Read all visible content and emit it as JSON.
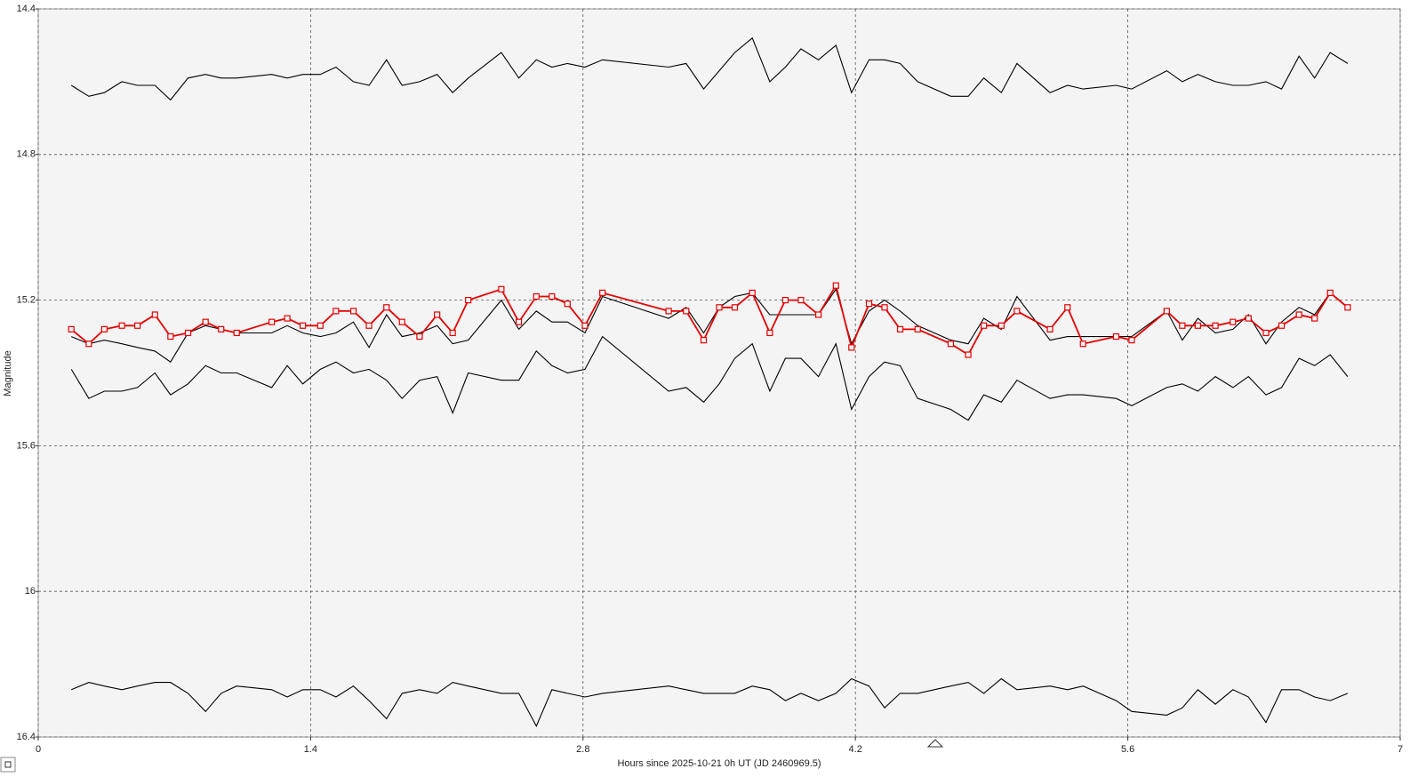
{
  "chart_data": {
    "type": "line",
    "x_label": "Hours since 2025-10-21 0h UT (JD 2460969.5)",
    "y_label": "Magnitude",
    "xlim": [
      0,
      7
    ],
    "xticks": [
      0,
      1.4,
      2.8,
      4.2,
      5.6,
      7
    ],
    "ylim": [
      14.4,
      16.4
    ],
    "yticks": [
      14.4,
      14.8,
      15.2,
      15.6,
      16,
      16.4
    ],
    "invert_y": true,
    "grid": true,
    "x": [
      0.17,
      0.26,
      0.34,
      0.43,
      0.51,
      0.6,
      0.68,
      0.77,
      0.86,
      0.94,
      1.02,
      1.2,
      1.28,
      1.36,
      1.45,
      1.53,
      1.62,
      1.7,
      1.79,
      1.87,
      1.96,
      2.05,
      2.13,
      2.21,
      2.38,
      2.47,
      2.56,
      2.64,
      2.72,
      2.81,
      2.9,
      3.24,
      3.33,
      3.42,
      3.5,
      3.58,
      3.67,
      3.76,
      3.84,
      3.92,
      4.01,
      4.1,
      4.18,
      4.27,
      4.35,
      4.43,
      4.52,
      4.69,
      4.78,
      4.86,
      4.95,
      5.03,
      5.2,
      5.29,
      5.37,
      5.54,
      5.62,
      5.8,
      5.88,
      5.96,
      6.05,
      6.14,
      6.22,
      6.31,
      6.39,
      6.48,
      6.56,
      6.64,
      6.73
    ],
    "series": [
      {
        "color": "#000000",
        "marker": "none",
        "values": [
          14.61,
          14.64,
          14.63,
          14.6,
          14.61,
          14.61,
          14.65,
          14.59,
          14.58,
          14.59,
          14.59,
          14.58,
          14.59,
          14.58,
          14.58,
          14.56,
          14.6,
          14.61,
          14.54,
          14.61,
          14.6,
          14.58,
          14.63,
          14.59,
          14.52,
          14.59,
          14.54,
          14.56,
          14.55,
          14.56,
          14.54,
          14.56,
          14.55,
          14.62,
          14.57,
          14.52,
          14.48,
          14.6,
          14.56,
          14.51,
          14.54,
          14.5,
          14.63,
          14.54,
          14.54,
          14.55,
          14.6,
          14.64,
          14.64,
          14.59,
          14.63,
          14.55,
          14.63,
          14.61,
          14.62,
          14.61,
          14.62,
          14.57,
          14.6,
          14.58,
          14.6,
          14.61,
          14.61,
          14.6,
          14.62,
          14.53,
          14.59,
          14.52,
          14.55
        ]
      },
      {
        "color": "#000000",
        "marker": "none",
        "values": [
          15.3,
          15.32,
          15.31,
          15.32,
          15.33,
          15.34,
          15.37,
          15.29,
          15.27,
          15.28,
          15.29,
          15.29,
          15.27,
          15.29,
          15.3,
          15.29,
          15.26,
          15.33,
          15.24,
          15.3,
          15.29,
          15.27,
          15.32,
          15.31,
          15.2,
          15.28,
          15.23,
          15.26,
          15.26,
          15.29,
          15.19,
          15.25,
          15.22,
          15.29,
          15.22,
          15.19,
          15.18,
          15.24,
          15.24,
          15.24,
          15.24,
          15.17,
          15.32,
          15.23,
          15.2,
          15.23,
          15.27,
          15.31,
          15.32,
          15.25,
          15.28,
          15.19,
          15.31,
          15.3,
          15.3,
          15.3,
          15.3,
          15.23,
          15.31,
          15.25,
          15.29,
          15.28,
          15.24,
          15.32,
          15.26,
          15.22,
          15.24,
          15.18,
          15.22
        ]
      },
      {
        "color": "#000000",
        "marker": "none",
        "values": [
          15.39,
          15.47,
          15.45,
          15.45,
          15.44,
          15.4,
          15.46,
          15.43,
          15.38,
          15.4,
          15.4,
          15.44,
          15.38,
          15.43,
          15.39,
          15.37,
          15.4,
          15.39,
          15.42,
          15.47,
          15.42,
          15.41,
          15.51,
          15.4,
          15.42,
          15.42,
          15.34,
          15.38,
          15.4,
          15.39,
          15.3,
          15.45,
          15.44,
          15.48,
          15.43,
          15.36,
          15.32,
          15.45,
          15.36,
          15.36,
          15.41,
          15.32,
          15.5,
          15.41,
          15.37,
          15.38,
          15.47,
          15.5,
          15.53,
          15.46,
          15.48,
          15.42,
          15.47,
          15.46,
          15.46,
          15.47,
          15.49,
          15.44,
          15.43,
          15.45,
          15.41,
          15.44,
          15.41,
          15.46,
          15.44,
          15.36,
          15.38,
          15.35,
          15.41
        ]
      },
      {
        "color": "#000000",
        "marker": "none",
        "values": [
          16.27,
          16.25,
          16.26,
          16.27,
          16.26,
          16.25,
          16.25,
          16.28,
          16.33,
          16.28,
          16.26,
          16.27,
          16.29,
          16.27,
          16.27,
          16.29,
          16.26,
          16.3,
          16.35,
          16.28,
          16.27,
          16.28,
          16.25,
          16.26,
          16.28,
          16.28,
          16.37,
          16.27,
          16.28,
          16.29,
          16.28,
          16.26,
          16.27,
          16.28,
          16.28,
          16.28,
          16.26,
          16.27,
          16.3,
          16.28,
          16.3,
          16.28,
          16.24,
          16.26,
          16.32,
          16.28,
          16.28,
          16.26,
          16.25,
          16.28,
          16.24,
          16.27,
          16.26,
          16.27,
          16.26,
          16.3,
          16.33,
          16.34,
          16.32,
          16.27,
          16.31,
          16.27,
          16.29,
          16.36,
          16.27,
          16.27,
          16.29,
          16.3,
          16.28
        ]
      },
      {
        "color": "#e60000",
        "marker": "square",
        "values": [
          15.28,
          15.32,
          15.28,
          15.27,
          15.27,
          15.24,
          15.3,
          15.29,
          15.26,
          15.28,
          15.29,
          15.26,
          15.25,
          15.27,
          15.27,
          15.23,
          15.23,
          15.27,
          15.22,
          15.26,
          15.3,
          15.24,
          15.29,
          15.2,
          15.17,
          15.26,
          15.19,
          15.19,
          15.21,
          15.27,
          15.18,
          15.23,
          15.23,
          15.31,
          15.22,
          15.22,
          15.18,
          15.29,
          15.2,
          15.2,
          15.24,
          15.16,
          15.33,
          15.21,
          15.22,
          15.28,
          15.28,
          15.32,
          15.35,
          15.27,
          15.27,
          15.23,
          15.28,
          15.22,
          15.32,
          15.3,
          15.31,
          15.23,
          15.27,
          15.27,
          15.27,
          15.26,
          15.25,
          15.29,
          15.27,
          15.24,
          15.25,
          15.18,
          15.22
        ]
      }
    ]
  }
}
